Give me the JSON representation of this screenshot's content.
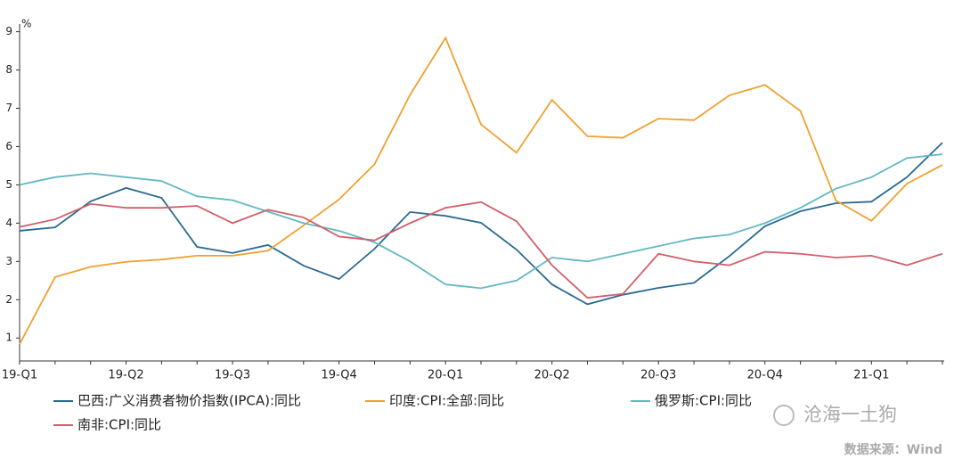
{
  "chart_data": {
    "type": "line",
    "unit": "%",
    "categories": [
      "19-Q1",
      null,
      null,
      "19-Q2",
      null,
      null,
      "19-Q3",
      null,
      null,
      "19-Q4",
      null,
      null,
      "20-Q1",
      null,
      null,
      "20-Q2",
      null,
      null,
      "20-Q3",
      null,
      null,
      "20-Q4",
      null,
      null,
      "21-Q1",
      null,
      null
    ],
    "series": [
      {
        "name": "巴西:广义消费者物价指数(IPCA):同比",
        "color": "#2a6a92",
        "values": [
          3.8,
          3.89,
          4.57,
          4.92,
          4.66,
          3.38,
          3.22,
          3.43,
          2.89,
          2.54,
          3.33,
          4.29,
          4.19,
          4.01,
          3.31,
          2.4,
          1.88,
          2.13,
          2.31,
          2.44,
          3.14,
          3.92,
          4.31,
          4.52,
          4.56,
          5.2,
          6.1
        ]
      },
      {
        "name": "印度:CPI:全部:同比",
        "color": "#f0a030",
        "values": [
          0.84,
          2.59,
          2.86,
          2.99,
          3.05,
          3.15,
          3.15,
          3.28,
          3.94,
          4.62,
          5.54,
          7.35,
          8.84,
          6.58,
          5.84,
          7.22,
          6.27,
          6.23,
          6.73,
          6.69,
          7.34,
          7.61,
          6.93,
          4.59,
          4.06,
          5.03,
          5.52
        ]
      },
      {
        "name": "俄罗斯:CPI:同比",
        "color": "#62b8c2",
        "values": [
          5.0,
          5.2,
          5.3,
          5.2,
          5.1,
          4.7,
          4.6,
          4.3,
          4.0,
          3.8,
          3.5,
          3.0,
          2.4,
          2.3,
          2.5,
          3.1,
          3.0,
          3.2,
          3.4,
          3.6,
          3.7,
          4.0,
          4.4,
          4.9,
          5.2,
          5.7,
          5.8
        ]
      },
      {
        "name": "南非:CPI:同比",
        "color": "#d0606a",
        "values": [
          3.9,
          4.1,
          4.5,
          4.4,
          4.4,
          4.45,
          4.0,
          4.35,
          4.15,
          3.65,
          3.55,
          4.0,
          4.4,
          4.55,
          4.05,
          2.9,
          2.05,
          2.15,
          3.2,
          3.0,
          2.9,
          3.25,
          3.2,
          3.1,
          3.15,
          2.9,
          3.2
        ]
      }
    ],
    "ylim": [
      0.4,
      9.2
    ],
    "yticks": [
      1,
      2,
      3,
      4,
      5,
      6,
      7,
      8,
      9
    ],
    "grid": false,
    "watermark": "沧海一土狗",
    "source": "数据来源：Wind"
  }
}
